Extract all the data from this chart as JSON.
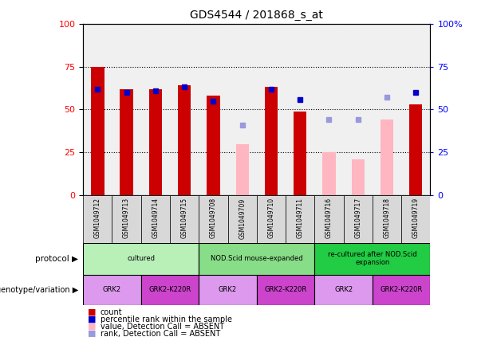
{
  "title": "GDS4544 / 201868_s_at",
  "samples": [
    "GSM1049712",
    "GSM1049713",
    "GSM1049714",
    "GSM1049715",
    "GSM1049708",
    "GSM1049709",
    "GSM1049710",
    "GSM1049711",
    "GSM1049716",
    "GSM1049717",
    "GSM1049718",
    "GSM1049719"
  ],
  "count_values": [
    75,
    62,
    62,
    64,
    58,
    null,
    63,
    49,
    null,
    null,
    null,
    53
  ],
  "count_absent": [
    null,
    null,
    null,
    null,
    null,
    30,
    null,
    null,
    25,
    21,
    44,
    null
  ],
  "rank_values": [
    62,
    60,
    61,
    63,
    55,
    null,
    62,
    56,
    null,
    null,
    null,
    60
  ],
  "rank_absent": [
    null,
    null,
    null,
    null,
    null,
    41,
    null,
    null,
    44,
    44,
    57,
    null
  ],
  "protocol_data": [
    {
      "start": 0,
      "end": 4,
      "color": "#b8f0b8",
      "label": "cultured"
    },
    {
      "start": 4,
      "end": 8,
      "color": "#88DD88",
      "label": "NOD.Scid mouse-expanded"
    },
    {
      "start": 8,
      "end": 12,
      "color": "#22CC44",
      "label": "re-cultured after NOD.Scid\nexpansion"
    }
  ],
  "geno_data": [
    {
      "start": 0,
      "end": 2,
      "color": "#DD99EE",
      "label": "GRK2"
    },
    {
      "start": 2,
      "end": 4,
      "color": "#CC44CC",
      "label": "GRK2-K220R"
    },
    {
      "start": 4,
      "end": 6,
      "color": "#DD99EE",
      "label": "GRK2"
    },
    {
      "start": 6,
      "end": 8,
      "color": "#CC44CC",
      "label": "GRK2-K220R"
    },
    {
      "start": 8,
      "end": 10,
      "color": "#DD99EE",
      "label": "GRK2"
    },
    {
      "start": 10,
      "end": 12,
      "color": "#CC44CC",
      "label": "GRK2-K220R"
    }
  ],
  "bar_color_red": "#CC0000",
  "bar_color_pink": "#FFB6C1",
  "dot_color_blue": "#0000CC",
  "dot_color_lightblue": "#9999DD",
  "ylim": [
    0,
    100
  ],
  "yticks": [
    0,
    25,
    50,
    75,
    100
  ],
  "legend_items": [
    {
      "label": "count",
      "color": "#CC0000"
    },
    {
      "label": "percentile rank within the sample",
      "color": "#0000CC"
    },
    {
      "label": "value, Detection Call = ABSENT",
      "color": "#FFB6C1"
    },
    {
      "label": "rank, Detection Call = ABSENT",
      "color": "#9999DD"
    }
  ],
  "fig_width": 6.13,
  "fig_height": 4.23,
  "dpi": 100
}
